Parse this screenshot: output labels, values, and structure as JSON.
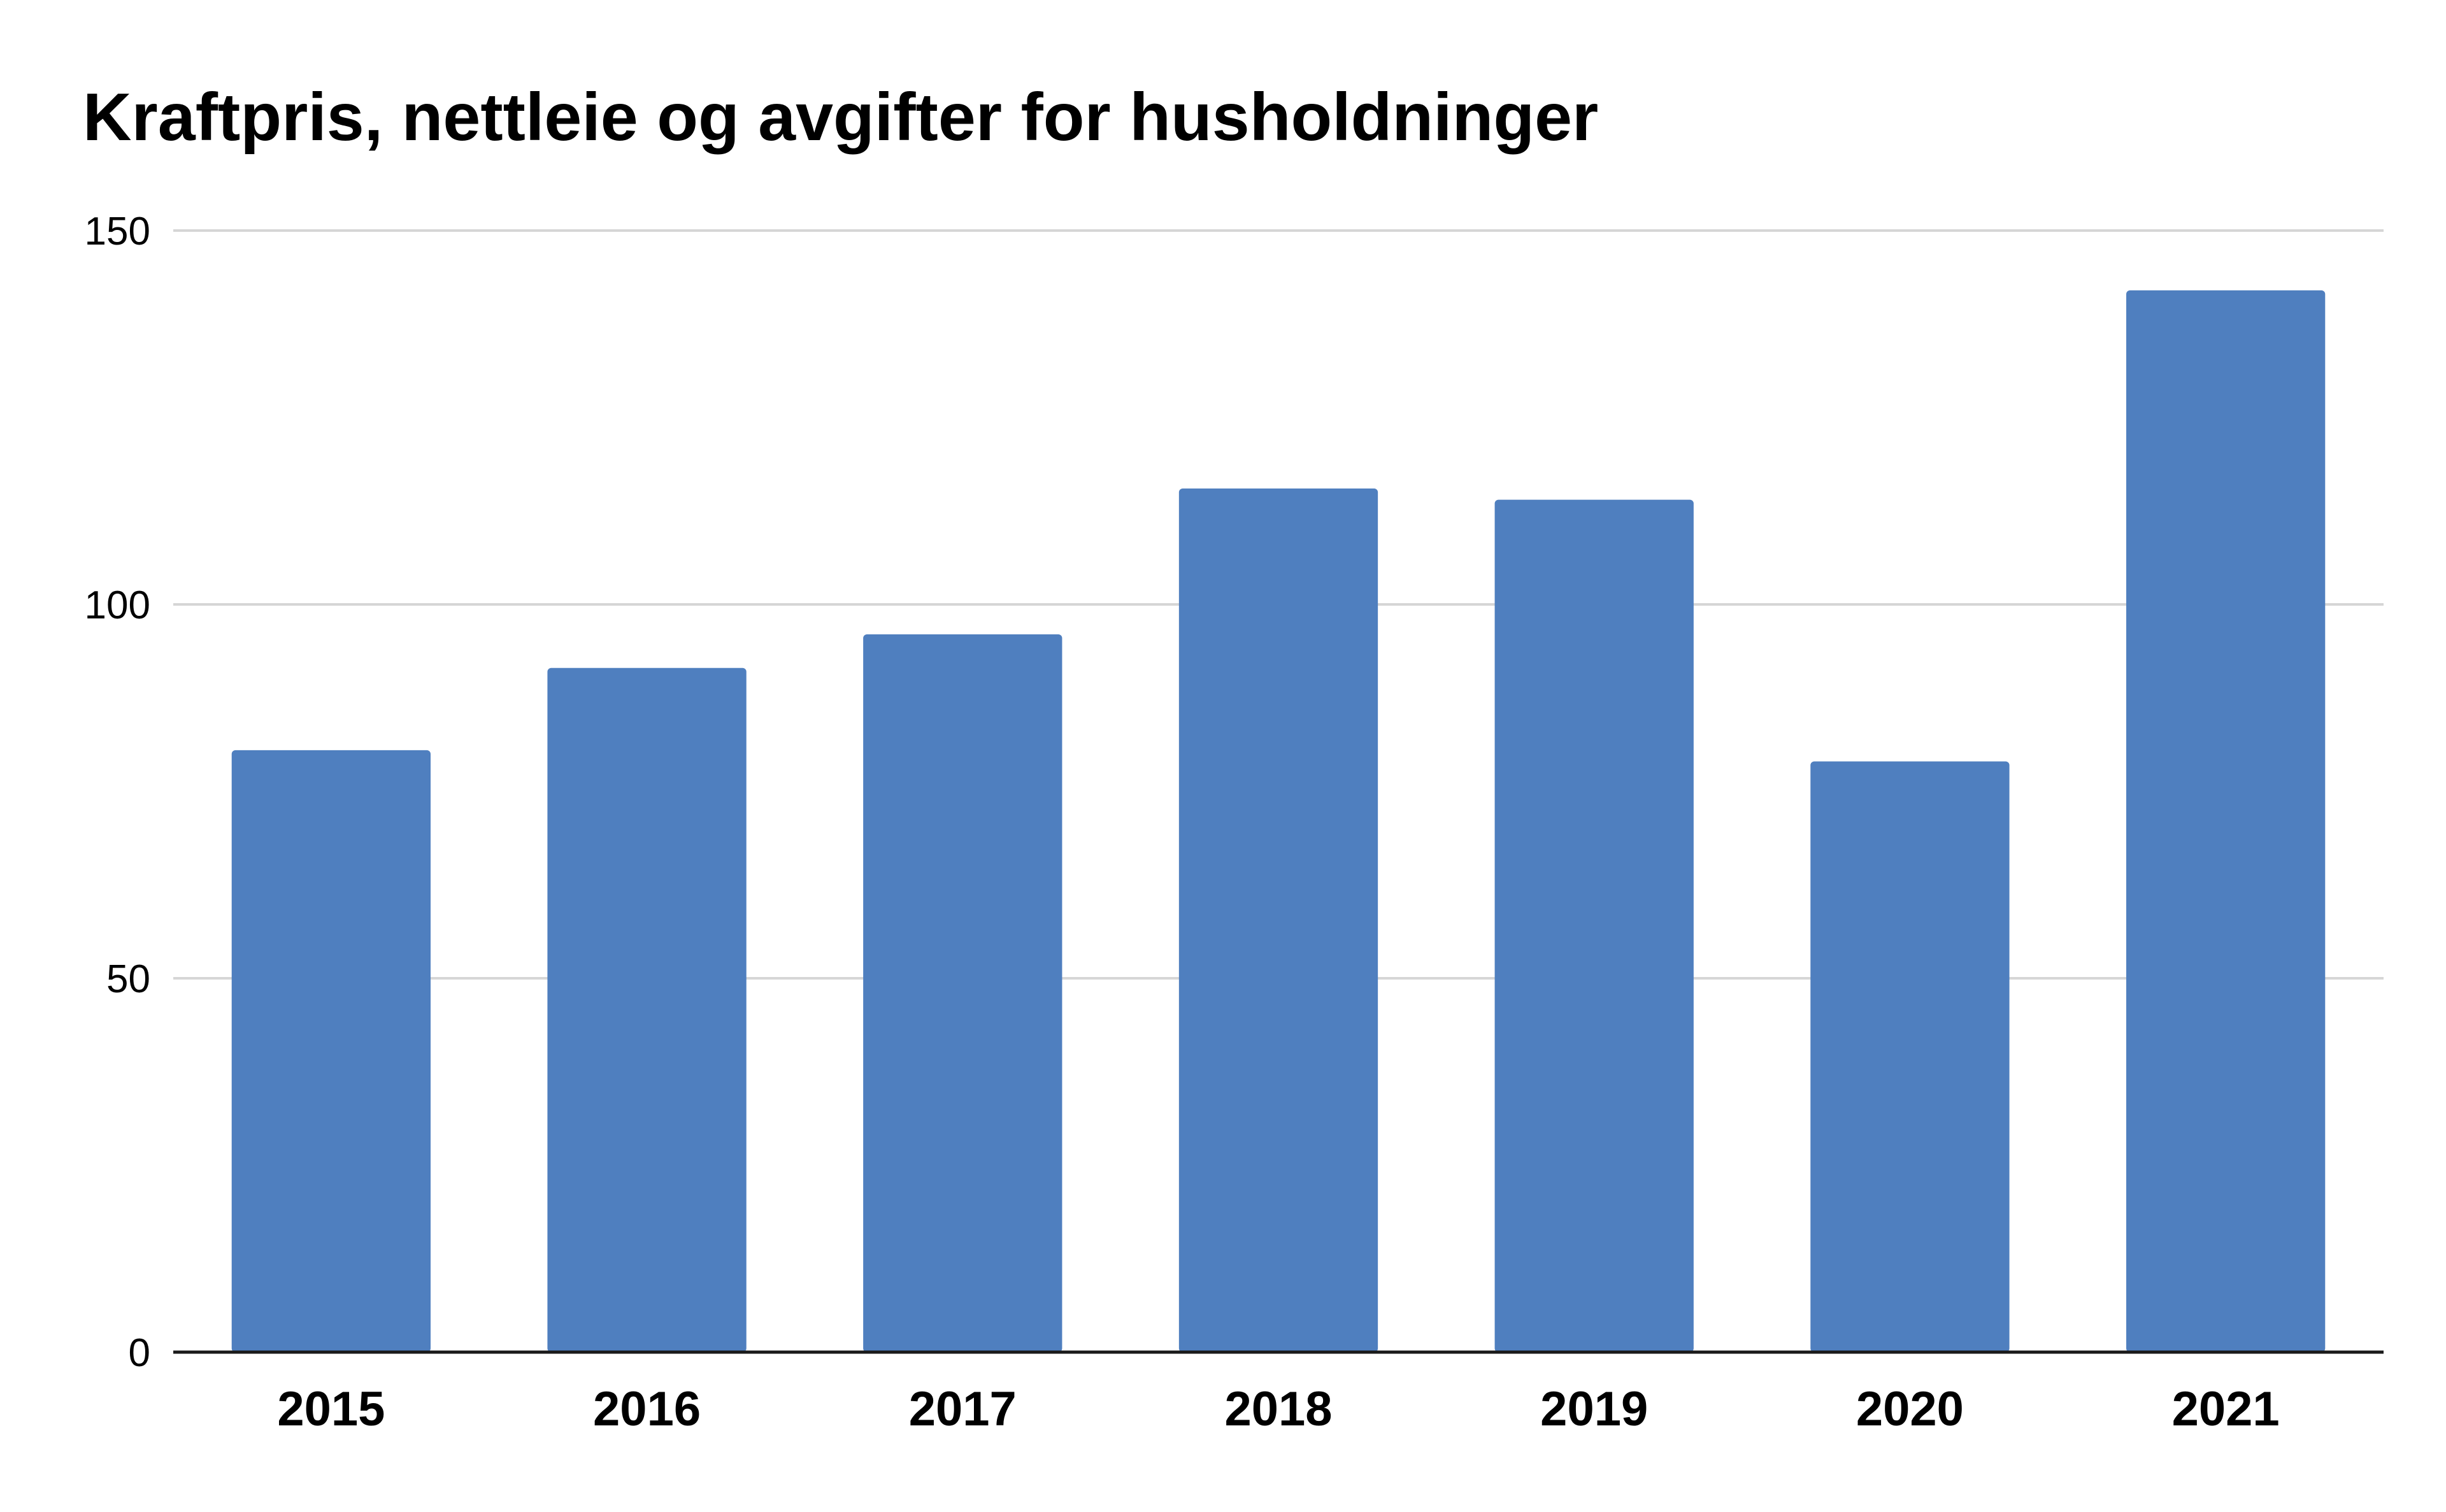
{
  "chart_data": {
    "type": "bar",
    "title": "Kraftpris, nettleie og avgifter for husholdninger",
    "xlabel": "",
    "ylabel": "",
    "categories": [
      "2015",
      "2016",
      "2017",
      "2018",
      "2019",
      "2020",
      "2021"
    ],
    "values": [
      80.5,
      91.5,
      96,
      115.5,
      114,
      79,
      142
    ],
    "ylim": [
      0,
      150
    ],
    "yticks": [
      0,
      50,
      100,
      150
    ],
    "ytick_labels": [
      "0",
      "50",
      "100",
      "150"
    ],
    "grid": true,
    "legend": "none",
    "bar_color": "#4f7fbf"
  }
}
